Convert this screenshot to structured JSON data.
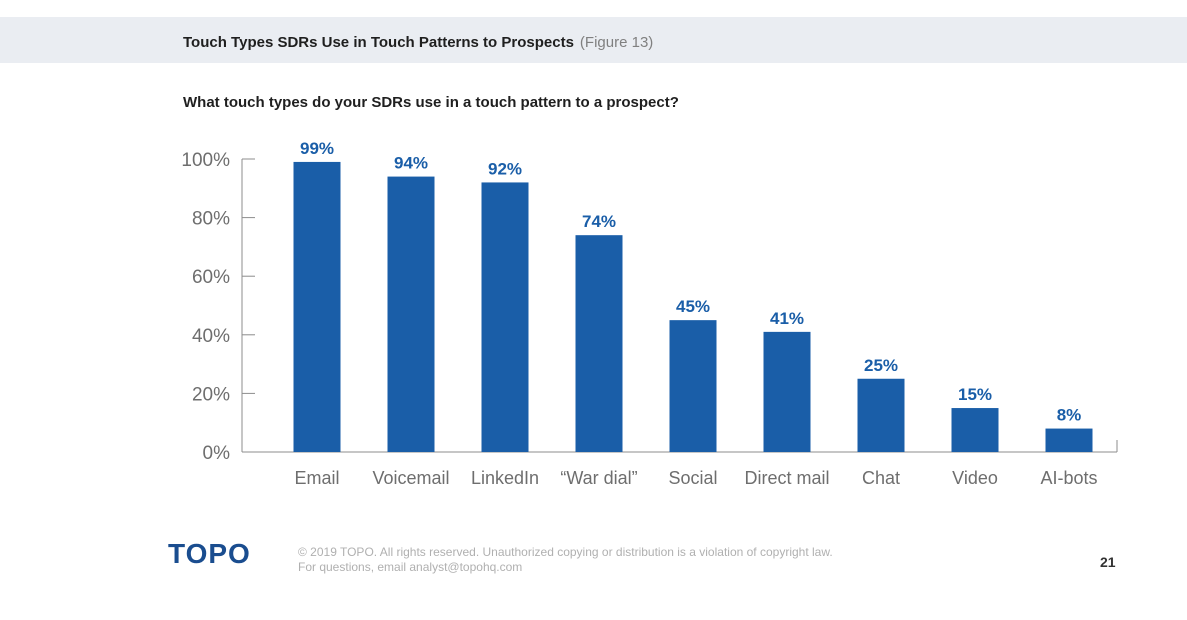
{
  "header": {
    "title": "Touch Types SDRs Use in Touch Patterns to Prospects",
    "figure": "(Figure 13)"
  },
  "question": "What touch types do your SDRs use in a touch pattern to a prospect?",
  "colors": {
    "bar": "#1a5ea8",
    "label": "#1a5ea8",
    "header_band": "#eaedf2"
  },
  "chart_data": {
    "type": "bar",
    "title": "",
    "xlabel": "",
    "ylabel": "",
    "categories": [
      "Email",
      "Voicemail",
      "LinkedIn",
      "“War dial”",
      "Social",
      "Direct mail",
      "Chat",
      "Video",
      "AI-bots"
    ],
    "values": [
      99,
      94,
      92,
      74,
      45,
      41,
      25,
      15,
      8
    ],
    "value_labels": [
      "99%",
      "94%",
      "92%",
      "74%",
      "45%",
      "41%",
      "25%",
      "15%",
      "8%"
    ],
    "ylim": [
      0,
      100
    ],
    "yticks": [
      0,
      20,
      40,
      60,
      80,
      100
    ],
    "ytick_labels": [
      "0%",
      "20%",
      "40%",
      "60%",
      "80%",
      "100%"
    ],
    "grid": false,
    "legend": "none"
  },
  "footer": {
    "logo": "TOPO",
    "copyright_line1": "© 2019 TOPO. All rights reserved. Unauthorized copying or distribution is a violation of copyright law.",
    "copyright_line2": "For questions, email analyst@topohq.com",
    "page_number": "21"
  }
}
